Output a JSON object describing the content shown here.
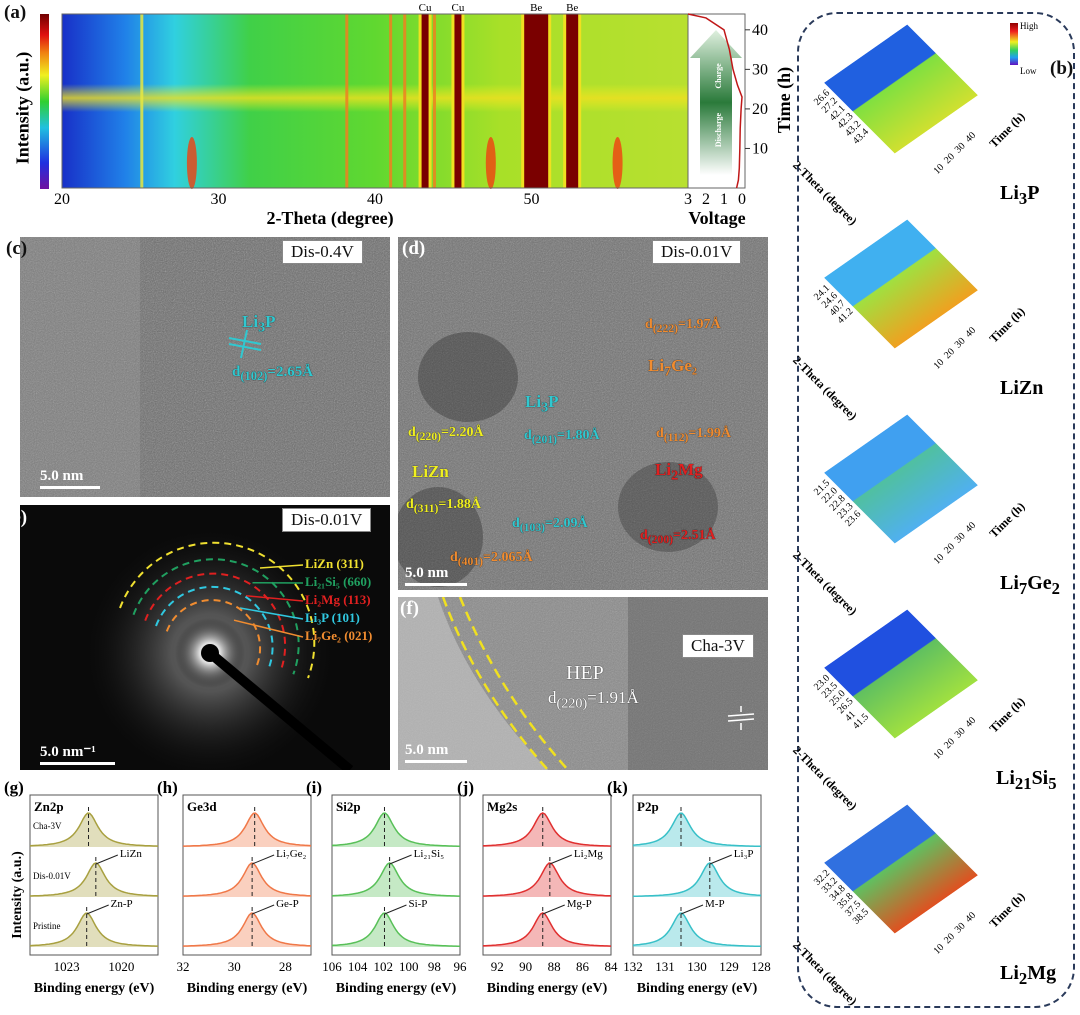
{
  "panels": {
    "a": "(a)",
    "b": "(b)",
    "c": "(c)",
    "d": "(d)",
    "e": "(e)",
    "f": "(f)",
    "g": "(g)",
    "h": "(h)",
    "i": "(i)",
    "j": "(j)",
    "k": "(k)"
  },
  "panel_a": {
    "colorbar_label": "Intensity (a.u.)",
    "xlabel": "2-Theta (degree)",
    "xticks": [
      "20",
      "30",
      "40",
      "50"
    ],
    "vlabel": "Voltage",
    "vticks": [
      "3",
      "2",
      "1",
      "0"
    ],
    "ylabel": "Time (h)",
    "yticks": [
      "10",
      "20",
      "30",
      "40"
    ],
    "peak_labels": [
      "Cu",
      "Cu",
      "Be",
      "Be"
    ],
    "arrow_charge": "Charge",
    "arrow_discharge": "Discharge"
  },
  "panel_b": {
    "legend_high": "High",
    "legend_low": "Low",
    "xlabel": "2-Theta (degree)",
    "ylabel": "Time (h)",
    "time_ticks": [
      "10",
      "20",
      "30",
      "40"
    ],
    "plots": [
      {
        "name": "Li3P",
        "sub": "3",
        "base": "Li",
        "tail": "P",
        "ticks": [
          "26.6",
          "27.2",
          "42.1",
          "42.3",
          "43.2",
          "43.4"
        ]
      },
      {
        "name": "LiZn",
        "base": "LiZn",
        "sub": "",
        "tail": "",
        "ticks": [
          "24.1",
          "24.6",
          "40.7",
          "41.2"
        ]
      },
      {
        "name": "Li7Ge2",
        "base": "Li",
        "sub": "7",
        "tail": "Ge",
        "sub2": "2",
        "ticks": [
          "21.5",
          "22.0",
          "22.8",
          "23.3",
          "23.6"
        ]
      },
      {
        "name": "Li21Si5",
        "base": "Li",
        "sub": "21",
        "tail": "Si",
        "sub2": "5",
        "ticks": [
          "23.0",
          "23.5",
          "25.0",
          "26.5",
          "41",
          "41.5"
        ]
      },
      {
        "name": "Li2Mg",
        "base": "Li",
        "sub": "2",
        "tail": "Mg",
        "ticks": [
          "32.2",
          "33.2",
          "34.8",
          "35.8",
          "37.5",
          "38.5"
        ]
      }
    ]
  },
  "panel_c": {
    "tag": "Dis-0.4V",
    "scale": "5.0 nm",
    "phase": "Li3P",
    "phase_base": "Li",
    "phase_sub": "3",
    "phase_tail": "P",
    "d": "d",
    "d_sub": "(102)",
    "d_val": "=2.65Å"
  },
  "panel_d": {
    "tag": "Dis-0.01V",
    "scale": "5.0 nm",
    "annotations": [
      {
        "text": "d",
        "sub": "(220)",
        "val": "=2.20Å",
        "color": "#f0f020"
      },
      {
        "text": "LiZn",
        "sub": "",
        "val": "",
        "color": "#f0f020"
      },
      {
        "text": "d",
        "sub": "(311)",
        "val": "=1.88Å",
        "color": "#f0f020"
      },
      {
        "text": "Li",
        "sub": "3",
        "val": "P",
        "color": "#30c8d0"
      },
      {
        "text": "d",
        "sub": "(201)",
        "val": "=1.80Å",
        "color": "#30c8d0"
      },
      {
        "text": "d",
        "sub": "(103)",
        "val": "=2.09Å",
        "color": "#30c8d0"
      },
      {
        "text": "d",
        "sub": "(222)",
        "val": "=1.97Å",
        "color": "#f08c30"
      },
      {
        "text": "Li",
        "sub": "7",
        "val": "Ge₂",
        "color": "#f08c30"
      },
      {
        "text": "d",
        "sub": "(112)",
        "val": "=1.99Å",
        "color": "#f08c30"
      },
      {
        "text": "d",
        "sub": "(401)",
        "val": "=2.065Å",
        "color": "#f08c30"
      },
      {
        "text": "Li",
        "sub": "2",
        "val": "Mg",
        "color": "#e02020"
      },
      {
        "text": "d",
        "sub": "(200)",
        "val": "=2.51Å",
        "color": "#e02020"
      }
    ]
  },
  "panel_e": {
    "tag": "Dis-0.01V",
    "scale": "5.0 nm⁻¹",
    "rings": [
      {
        "label": "LiZn (311)",
        "color": "#f0e030"
      },
      {
        "label": "Li₂₁Si₅ (660)",
        "color": "#20a060"
      },
      {
        "label": "Li₂Mg (113)",
        "color": "#e02020"
      },
      {
        "label": "Li₃P (101)",
        "color": "#30c8e0"
      },
      {
        "label": "Li₇Ge₂ (021)",
        "color": "#f08c30"
      }
    ]
  },
  "panel_f": {
    "tag": "Cha-3V",
    "scale": "5.0 nm",
    "label": "HEP",
    "d": "d",
    "d_sub": "(220)",
    "d_val": "=1.91Å"
  },
  "xps": {
    "ylabel": "Intensity (a.u.)",
    "xlabel": "Binding energy (eV)",
    "row_labels": [
      "Cha-3V",
      "Dis-0.01V",
      "Pristine"
    ]
  },
  "chart_data": [
    {
      "type": "heatmap",
      "title": "(a)",
      "xlabel": "2-Theta (degree)",
      "ylabel": "Time (h)",
      "xlim": [
        20,
        60
      ],
      "ylim": [
        0,
        44
      ],
      "strong_peaks": [
        {
          "x": 43.2,
          "label": "Cu"
        },
        {
          "x": 45.3,
          "label": "Cu"
        },
        {
          "x": 50.3,
          "label": "Be"
        },
        {
          "x": 52.6,
          "label": "Be"
        }
      ],
      "minor_peaks": [
        25.1,
        38.2,
        41.0,
        41.9,
        43.8
      ],
      "transient_spots": [
        28.3,
        47.4,
        55.5
      ],
      "voltage_curve": {
        "time": [
          0,
          2,
          5,
          10,
          15,
          20,
          23,
          26,
          30,
          35,
          40,
          43,
          44
        ],
        "voltage": [
          0.3,
          0.2,
          0.15,
          0.12,
          0.1,
          0.05,
          0.0,
          0.25,
          0.5,
          0.7,
          1.0,
          2.0,
          3.0
        ]
      }
    },
    {
      "type": "line",
      "title": "Zn2p",
      "xlim": [
        1025,
        1018
      ],
      "xticks": [
        1023,
        1020
      ],
      "color": "#a8a040",
      "series": [
        {
          "name": "Cha-3V",
          "center": 1021.8
        },
        {
          "name": "Dis-0.01V",
          "center": 1021.4,
          "label": "LiZn"
        },
        {
          "name": "Pristine",
          "center": 1021.9,
          "label": "Zn-P"
        }
      ]
    },
    {
      "type": "line",
      "title": "Ge3d",
      "xlim": [
        32,
        27
      ],
      "xticks": [
        32,
        30,
        28
      ],
      "color": "#f07848",
      "series": [
        {
          "name": "Cha-3V",
          "center": 29.2
        },
        {
          "name": "Dis-0.01V",
          "center": 29.3,
          "label": "Li7Ge2"
        },
        {
          "name": "Pristine",
          "center": 29.3,
          "label": "Ge-P"
        }
      ]
    },
    {
      "type": "line",
      "title": "Si2p",
      "xlim": [
        106,
        96
      ],
      "xticks": [
        106,
        104,
        102,
        100,
        98,
        96
      ],
      "color": "#58c058",
      "series": [
        {
          "name": "Cha-3V",
          "center": 101.9
        },
        {
          "name": "Dis-0.01V",
          "center": 101.5,
          "label": "Li21Si5"
        },
        {
          "name": "Pristine",
          "center": 101.9,
          "label": "Si-P"
        }
      ]
    },
    {
      "type": "line",
      "title": "Mg2s",
      "xlim": [
        93,
        84
      ],
      "xticks": [
        92,
        90,
        88,
        86,
        84
      ],
      "color": "#e03030",
      "series": [
        {
          "name": "Cha-3V",
          "center": 88.8
        },
        {
          "name": "Dis-0.01V",
          "center": 88.3,
          "label": "Li2Mg"
        },
        {
          "name": "Pristine",
          "center": 88.8,
          "label": "Mg-P"
        }
      ]
    },
    {
      "type": "line",
      "title": "P2p",
      "xlim": [
        132,
        128
      ],
      "xticks": [
        132,
        131,
        130,
        129,
        128
      ],
      "color": "#38c0c8",
      "series": [
        {
          "name": "Cha-3V",
          "center": 130.5
        },
        {
          "name": "Dis-0.01V",
          "center": 129.6,
          "label": "Li3P"
        },
        {
          "name": "Pristine",
          "center": 130.5,
          "label": "M-P"
        }
      ]
    }
  ]
}
